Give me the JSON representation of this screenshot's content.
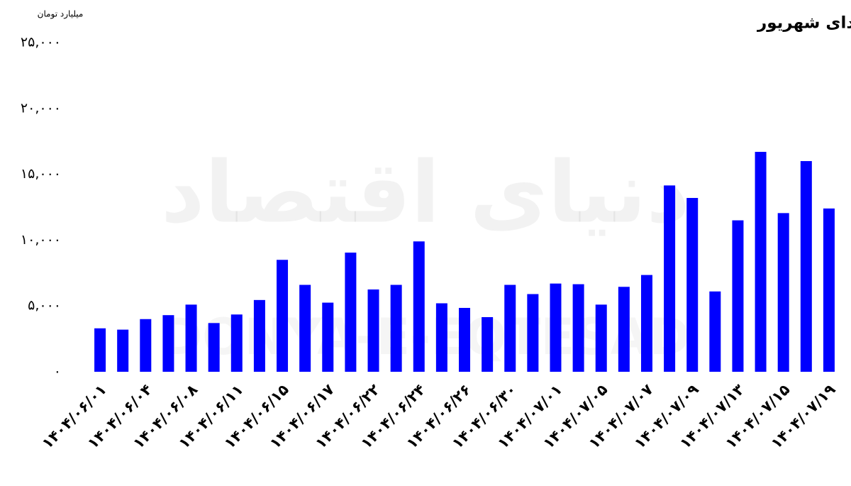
{
  "chart_data": {
    "type": "bar",
    "title": "روند ارزش معاملات بازار (سهام، حق‌تقدم و صندوق‌های سهامی) از ابتدای شهریور",
    "y_label": "میلیارد تومان",
    "watermark": [
      "دنیای اقتصاد",
      "DONYA-E-EQTESAD"
    ],
    "categories": [
      "۱۴۰۴/۰۶/۰۱",
      null,
      "۱۴۰۴/۰۶/۰۴",
      null,
      "۱۴۰۴/۰۶/۰۸",
      null,
      "۱۴۰۴/۰۶/۱۱",
      null,
      "۱۴۰۴/۰۶/۱۵",
      null,
      "۱۴۰۴/۰۶/۱۷",
      null,
      "۱۴۰۴/۰۶/۲۲",
      null,
      "۱۴۰۴/۰۶/۲۴",
      null,
      "۱۴۰۴/۰۶/۲۶",
      null,
      "۱۴۰۴/۰۶/۳۰",
      null,
      "۱۴۰۴/۰۷/۰۱",
      null,
      "۱۴۰۴/۰۷/۰۵",
      null,
      "۱۴۰۴/۰۷/۰۷",
      null,
      "۱۴۰۴/۰۷/۰۹",
      null,
      "۱۴۰۴/۰۷/۱۳",
      null,
      "۱۴۰۴/۰۷/۱۵",
      null,
      "۱۴۰۴/۰۷/۱۹"
    ],
    "values": [
      3300,
      3200,
      4000,
      4300,
      5100,
      3700,
      4350,
      5450,
      8500,
      6600,
      5250,
      9050,
      6250,
      6600,
      9900,
      5200,
      4850,
      4150,
      6600,
      5900,
      6700,
      6650,
      5100,
      6450,
      7350,
      14150,
      13200,
      6100,
      11500,
      16700,
      12050,
      16000,
      12400
    ],
    "color": "#0000ff",
    "ylim": [
      0,
      25000
    ],
    "yticks": [
      {
        "value": 0,
        "label": "۰"
      },
      {
        "value": 5000,
        "label": "۵,۰۰۰"
      },
      {
        "value": 10000,
        "label": "۱۰,۰۰۰"
      },
      {
        "value": 15000,
        "label": "۱۵,۰۰۰"
      },
      {
        "value": 20000,
        "label": "۲۰,۰۰۰"
      },
      {
        "value": 25000,
        "label": "۲۵,۰۰۰"
      }
    ],
    "grid": false
  }
}
